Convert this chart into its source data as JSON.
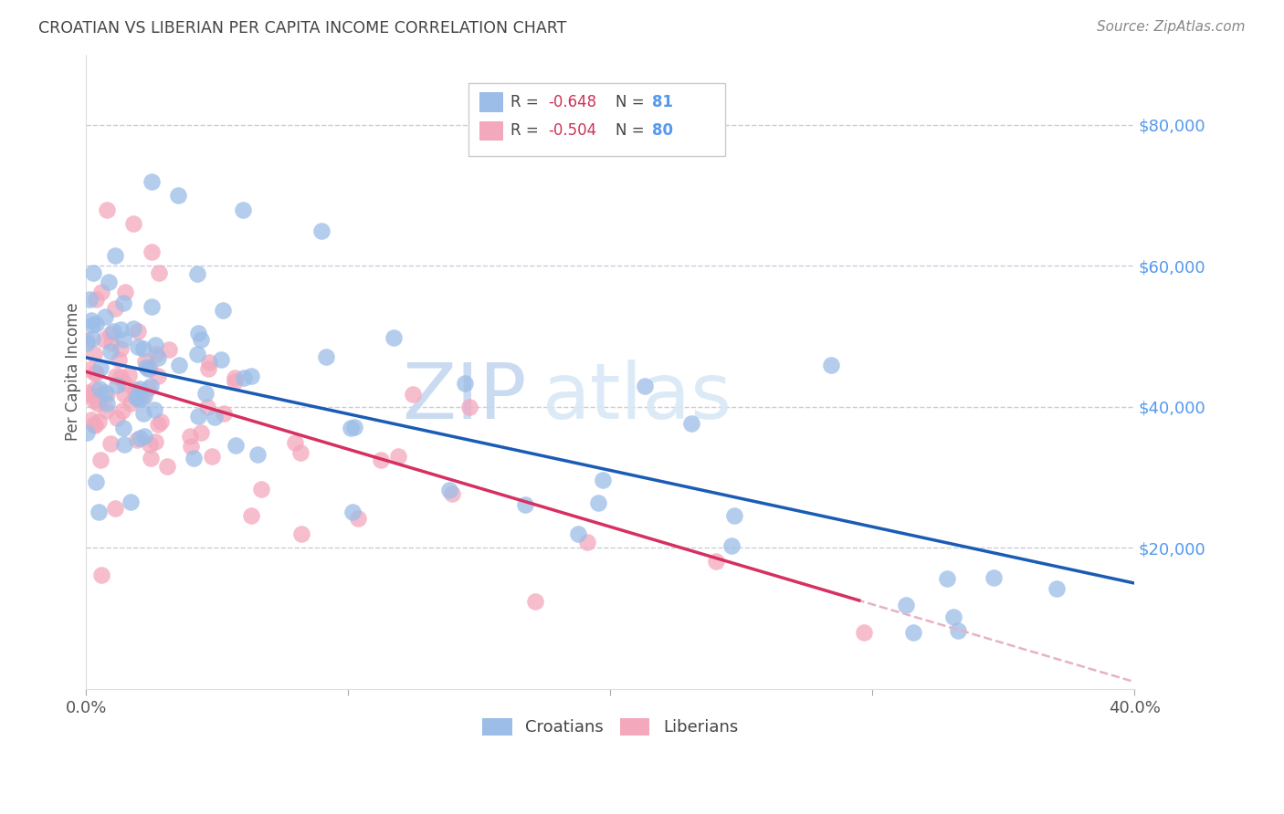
{
  "title": "CROATIAN VS LIBERIAN PER CAPITA INCOME CORRELATION CHART",
  "source": "Source: ZipAtlas.com",
  "ylabel": "Per Capita Income",
  "x_min": 0.0,
  "x_max": 0.4,
  "y_min": 0,
  "y_max": 90000,
  "croatian_color": "#9bbde8",
  "liberian_color": "#f4a8bc",
  "croatian_line_color": "#1a5cb5",
  "liberian_line_color": "#d63060",
  "trend_extend_color": "#e8b0c8",
  "background_color": "#ffffff",
  "grid_color": "#c8cce0",
  "legend_r_croatian": "-0.648",
  "legend_n_croatian": "81",
  "legend_r_liberian": "-0.504",
  "legend_n_liberian": "80",
  "watermark_zip": "ZIP",
  "watermark_atlas": "atlas",
  "tick_label_color": "#5599ee",
  "title_color": "#444444",
  "source_color": "#888888"
}
